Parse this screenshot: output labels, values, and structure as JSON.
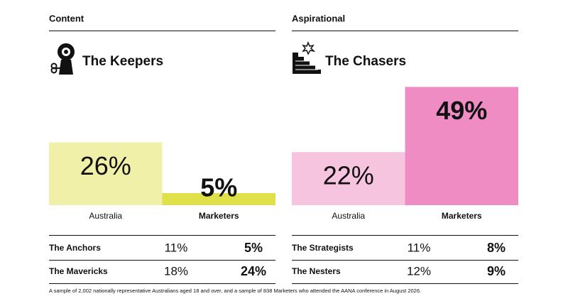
{
  "chart_data": [
    {
      "type": "bar",
      "section": "Content",
      "title": "The Keepers",
      "categories": [
        "Australia",
        "Marketers"
      ],
      "values": [
        26,
        5
      ],
      "value_labels": [
        "26%",
        "5%"
      ],
      "colors": [
        "#f0f0a8",
        "#dfe04a"
      ]
    },
    {
      "type": "bar",
      "section": "Aspirational",
      "title": "The Chasers",
      "categories": [
        "Australia",
        "Marketers"
      ],
      "values": [
        22,
        49
      ],
      "value_labels": [
        "22%",
        "49%"
      ],
      "colors": [
        "#f6c4de",
        "#f08cc4"
      ]
    }
  ],
  "tables": [
    {
      "rows": [
        [
          "The Anchors",
          "11%",
          "5%"
        ],
        [
          "The Mavericks",
          "18%",
          "24%"
        ]
      ]
    },
    {
      "rows": [
        [
          "The Strategists",
          "11%",
          "8%"
        ],
        [
          "The Nesters",
          "12%",
          "9%"
        ]
      ]
    }
  ],
  "footnote": "A sample of 2,002 nationally representative Australians aged 18 and over, and a sample of 838 Marketers who attended the AANA conference in August 2026."
}
